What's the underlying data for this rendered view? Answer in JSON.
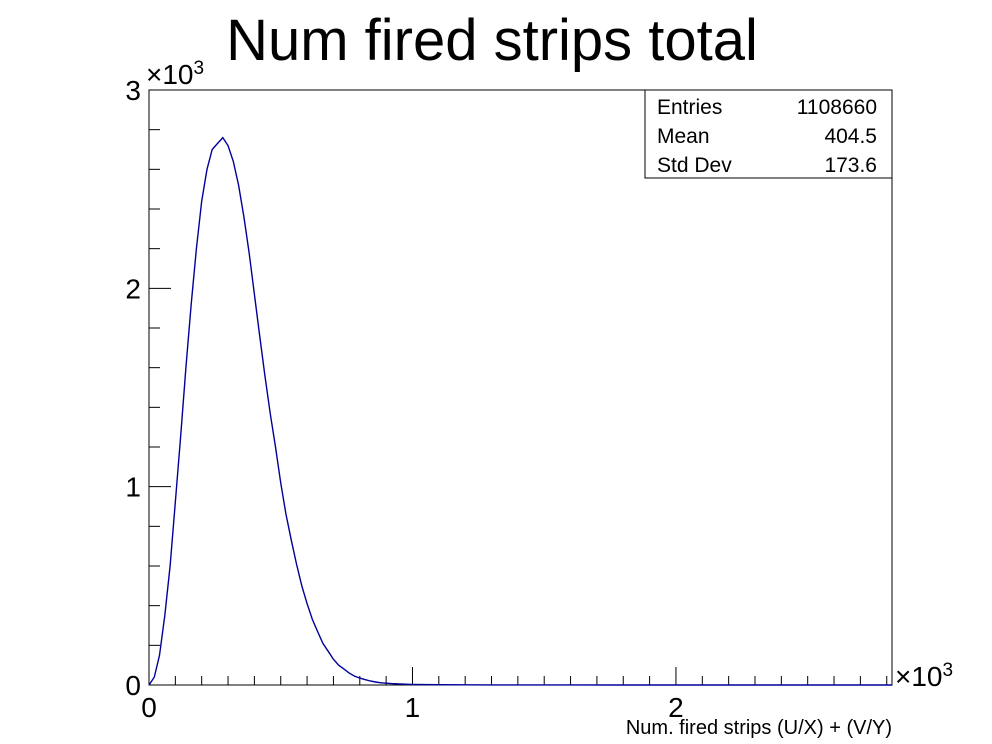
{
  "chart_data": {
    "type": "histogram",
    "title": "Num fired strips total",
    "xlabel": "Num. fired strips (U/X) + (V/Y)",
    "ylabel": "",
    "x_multiplier": "×10",
    "x_multiplier_exp": "3",
    "y_multiplier": "×10",
    "y_multiplier_exp": "3",
    "xlim": [
      0,
      2.82
    ],
    "ylim": [
      0,
      3
    ],
    "x_ticks": [
      "0",
      "1",
      "2"
    ],
    "y_ticks": [
      "0",
      "1",
      "2",
      "3"
    ],
    "grid": false,
    "line_color": "#000099",
    "series": [
      {
        "x": [
          0.0,
          0.02,
          0.04,
          0.06,
          0.08,
          0.1,
          0.12,
          0.14,
          0.16,
          0.18,
          0.2,
          0.22,
          0.24,
          0.26,
          0.28,
          0.3,
          0.32,
          0.34,
          0.36,
          0.38,
          0.4,
          0.42,
          0.44,
          0.46,
          0.48,
          0.5,
          0.52,
          0.54,
          0.56,
          0.58,
          0.6,
          0.62,
          0.64,
          0.66,
          0.68,
          0.7,
          0.72,
          0.74,
          0.76,
          0.78,
          0.8,
          0.82,
          0.84,
          0.86,
          0.88,
          0.9,
          0.92,
          0.95,
          1.0,
          1.05,
          1.1,
          1.2,
          1.3,
          1.4,
          1.6,
          1.8,
          2.0,
          2.4,
          2.82
        ],
        "values": [
          0.0,
          0.04,
          0.15,
          0.35,
          0.6,
          0.92,
          1.25,
          1.6,
          1.92,
          2.2,
          2.44,
          2.6,
          2.7,
          2.73,
          2.76,
          2.72,
          2.64,
          2.52,
          2.36,
          2.18,
          1.97,
          1.76,
          1.56,
          1.37,
          1.2,
          1.02,
          0.86,
          0.73,
          0.61,
          0.5,
          0.41,
          0.33,
          0.27,
          0.21,
          0.17,
          0.13,
          0.1,
          0.08,
          0.06,
          0.045,
          0.035,
          0.027,
          0.02,
          0.015,
          0.011,
          0.009,
          0.007,
          0.005,
          0.003,
          0.002,
          0.0015,
          0.001,
          0.0007,
          0.0005,
          0.0003,
          0.0002,
          0.0001,
          5e-05,
          0.0
        ]
      }
    ]
  },
  "stats_box": {
    "rows": [
      {
        "label": "Entries",
        "value": "1108660"
      },
      {
        "label": "Mean",
        "value": "404.5"
      },
      {
        "label": "Std Dev",
        "value": "173.6"
      }
    ]
  }
}
